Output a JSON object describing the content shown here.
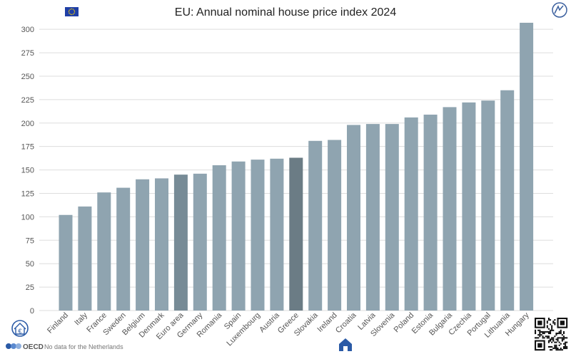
{
  "colors": {
    "bar": "#8fa4b0",
    "bar_highlight_euro": "#778b96",
    "bar_highlight_greece": "#6b7c85",
    "grid": "#dddddd",
    "eu_flag": "#1f3fa6",
    "eu_stars": "#ffd700",
    "brand_blue": "#2a5aa6"
  },
  "icons": {
    "eu_flag": "eu-flag-icon",
    "top_right": "wind-sign-icon",
    "bottom_left": "euro-house-icon",
    "oecd_logo": "oecd-logo-icon",
    "bottom_center": "house-icon",
    "qr": "qr-code-icon"
  },
  "footer": {
    "oecd_label": "OECD",
    "note": "No  data for the Netherlands"
  },
  "chart_data": {
    "type": "bar",
    "title": "EU: Annual nominal house price index 2024",
    "xlabel": "",
    "ylabel": "",
    "ylim": [
      0,
      310
    ],
    "yticks": [
      0,
      25,
      50,
      75,
      100,
      125,
      150,
      175,
      200,
      225,
      250,
      275,
      300
    ],
    "grid": true,
    "categories": [
      "Finland",
      "Italy",
      "France",
      "Sweden",
      "Belgium",
      "Denmark",
      "Euro area",
      "Germany",
      "Romania",
      "Spain",
      "Luxembourg",
      "Austria",
      "Greece",
      "Slovakia",
      "Ireland",
      "Croatia",
      "Latvia",
      "Slovenia",
      "Poland",
      "Estonia",
      "Bulgaria",
      "Czechia",
      "Portugal",
      "Lithuania",
      "Hungary"
    ],
    "values": [
      102,
      111,
      126,
      131,
      140,
      141,
      145,
      146,
      155,
      159,
      161,
      162,
      163,
      181,
      182,
      198,
      199,
      199,
      206,
      209,
      217,
      222,
      224,
      235,
      307
    ],
    "highlighted": [
      "Euro area",
      "Greece"
    ]
  }
}
